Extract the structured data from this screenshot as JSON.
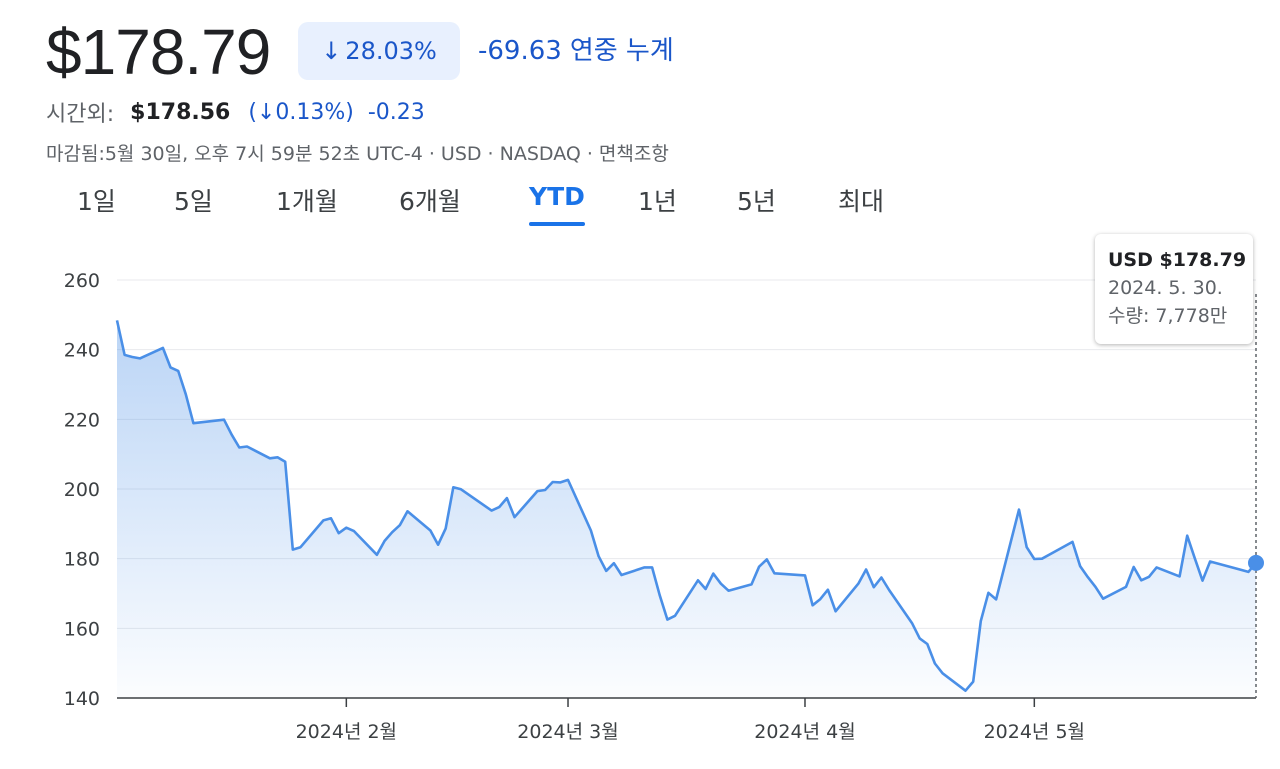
{
  "quote": {
    "price": "$178.79",
    "change_pct": "28.03%",
    "change_abs": "-69.63",
    "period_label": "연중 누계"
  },
  "after_hours": {
    "label": "시간외:",
    "price": "$178.56",
    "change_pct": "0.13%",
    "change_abs": "-0.23"
  },
  "meta_line": "마감됨:5월 30일, 오후 7시 59분 52초 UTC-4 · USD · NASDAQ · 면책조항",
  "range_tabs": [
    {
      "label": "1일",
      "active": false
    },
    {
      "label": "5일",
      "active": false
    },
    {
      "label": "1개월",
      "active": false
    },
    {
      "label": "6개월",
      "active": false
    },
    {
      "label": "YTD",
      "active": true
    },
    {
      "label": "1년",
      "active": false
    },
    {
      "label": "5년",
      "active": false
    },
    {
      "label": "최대",
      "active": false
    }
  ],
  "tooltip": {
    "price": "USD $178.79",
    "date": "2024. 5. 30.",
    "volume": "수량: 7,778만"
  },
  "colors": {
    "line": "#4a8fe7",
    "accent_blue": "#1a56c9",
    "badge_bg": "#e8f0fe",
    "grid": "#e8eaed"
  },
  "chart_data": {
    "type": "area",
    "xlabel": "",
    "ylabel": "",
    "ylim": [
      140,
      260
    ],
    "yticks": [
      140,
      160,
      180,
      200,
      220,
      240,
      260
    ],
    "xlim": [
      "2024-01-02",
      "2024-05-30"
    ],
    "x_tick_labels": [
      {
        "date": "2024-02-01",
        "label": "2024년 2월"
      },
      {
        "date": "2024-03-01",
        "label": "2024년 3월"
      },
      {
        "date": "2024-04-01",
        "label": "2024년 4월"
      },
      {
        "date": "2024-05-01",
        "label": "2024년 5월"
      }
    ],
    "grid": true,
    "series": [
      {
        "x": [
          "2024-01-02",
          "2024-01-03",
          "2024-01-04",
          "2024-01-05",
          "2024-01-08",
          "2024-01-09",
          "2024-01-10",
          "2024-01-11",
          "2024-01-12",
          "2024-01-16",
          "2024-01-17",
          "2024-01-18",
          "2024-01-19",
          "2024-01-22",
          "2024-01-23",
          "2024-01-24",
          "2024-01-25",
          "2024-01-26",
          "2024-01-29",
          "2024-01-30",
          "2024-01-31",
          "2024-02-01",
          "2024-02-02",
          "2024-02-05",
          "2024-02-06",
          "2024-02-07",
          "2024-02-08",
          "2024-02-09",
          "2024-02-12",
          "2024-02-13",
          "2024-02-14",
          "2024-02-15",
          "2024-02-16",
          "2024-02-20",
          "2024-02-21",
          "2024-02-22",
          "2024-02-23",
          "2024-02-26",
          "2024-02-27",
          "2024-02-28",
          "2024-02-29",
          "2024-03-01",
          "2024-03-04",
          "2024-03-05",
          "2024-03-06",
          "2024-03-07",
          "2024-03-08",
          "2024-03-11",
          "2024-03-12",
          "2024-03-13",
          "2024-03-14",
          "2024-03-15",
          "2024-03-18",
          "2024-03-19",
          "2024-03-20",
          "2024-03-21",
          "2024-03-22",
          "2024-03-25",
          "2024-03-26",
          "2024-03-27",
          "2024-03-28",
          "2024-04-01",
          "2024-04-02",
          "2024-04-03",
          "2024-04-04",
          "2024-04-05",
          "2024-04-08",
          "2024-04-09",
          "2024-04-10",
          "2024-04-11",
          "2024-04-12",
          "2024-04-15",
          "2024-04-16",
          "2024-04-17",
          "2024-04-18",
          "2024-04-19",
          "2024-04-22",
          "2024-04-23",
          "2024-04-24",
          "2024-04-25",
          "2024-04-26",
          "2024-04-29",
          "2024-04-30",
          "2024-05-01",
          "2024-05-02",
          "2024-05-03",
          "2024-05-06",
          "2024-05-07",
          "2024-05-08",
          "2024-05-09",
          "2024-05-10",
          "2024-05-13",
          "2024-05-14",
          "2024-05-15",
          "2024-05-16",
          "2024-05-17",
          "2024-05-20",
          "2024-05-21",
          "2024-05-22",
          "2024-05-23",
          "2024-05-24",
          "2024-05-28",
          "2024-05-29",
          "2024-05-30"
        ],
        "y": [
          248.4,
          238.5,
          237.9,
          237.5,
          240.5,
          234.9,
          233.9,
          227.2,
          218.9,
          219.9,
          215.6,
          211.9,
          212.2,
          208.8,
          209.1,
          207.8,
          182.6,
          183.3,
          191.0,
          191.6,
          187.3,
          188.9,
          187.9,
          181.1,
          185.1,
          187.6,
          189.6,
          193.6,
          188.1,
          184.0,
          188.7,
          200.5,
          199.9,
          193.8,
          194.8,
          197.4,
          191.9,
          199.4,
          199.7,
          202.0,
          201.9,
          202.6,
          188.1,
          180.7,
          176.5,
          178.7,
          175.3,
          177.5,
          177.5,
          169.5,
          162.5,
          163.6,
          173.8,
          171.3,
          175.7,
          172.8,
          170.8,
          172.6,
          177.7,
          179.8,
          175.8,
          175.2,
          166.6,
          168.4,
          171.1,
          164.9,
          172.9,
          176.9,
          171.8,
          174.6,
          171.0,
          161.5,
          157.1,
          155.5,
          149.9,
          147.1,
          142.1,
          144.7,
          162.1,
          170.2,
          168.3,
          194.1,
          183.3,
          179.9,
          180.0,
          181.2,
          184.8,
          177.8,
          174.7,
          171.9,
          168.5,
          171.9,
          177.6,
          173.8,
          174.8,
          177.5,
          174.9,
          186.6,
          180.1,
          173.7,
          179.2,
          176.8,
          176.2,
          178.8
        ]
      }
    ]
  }
}
